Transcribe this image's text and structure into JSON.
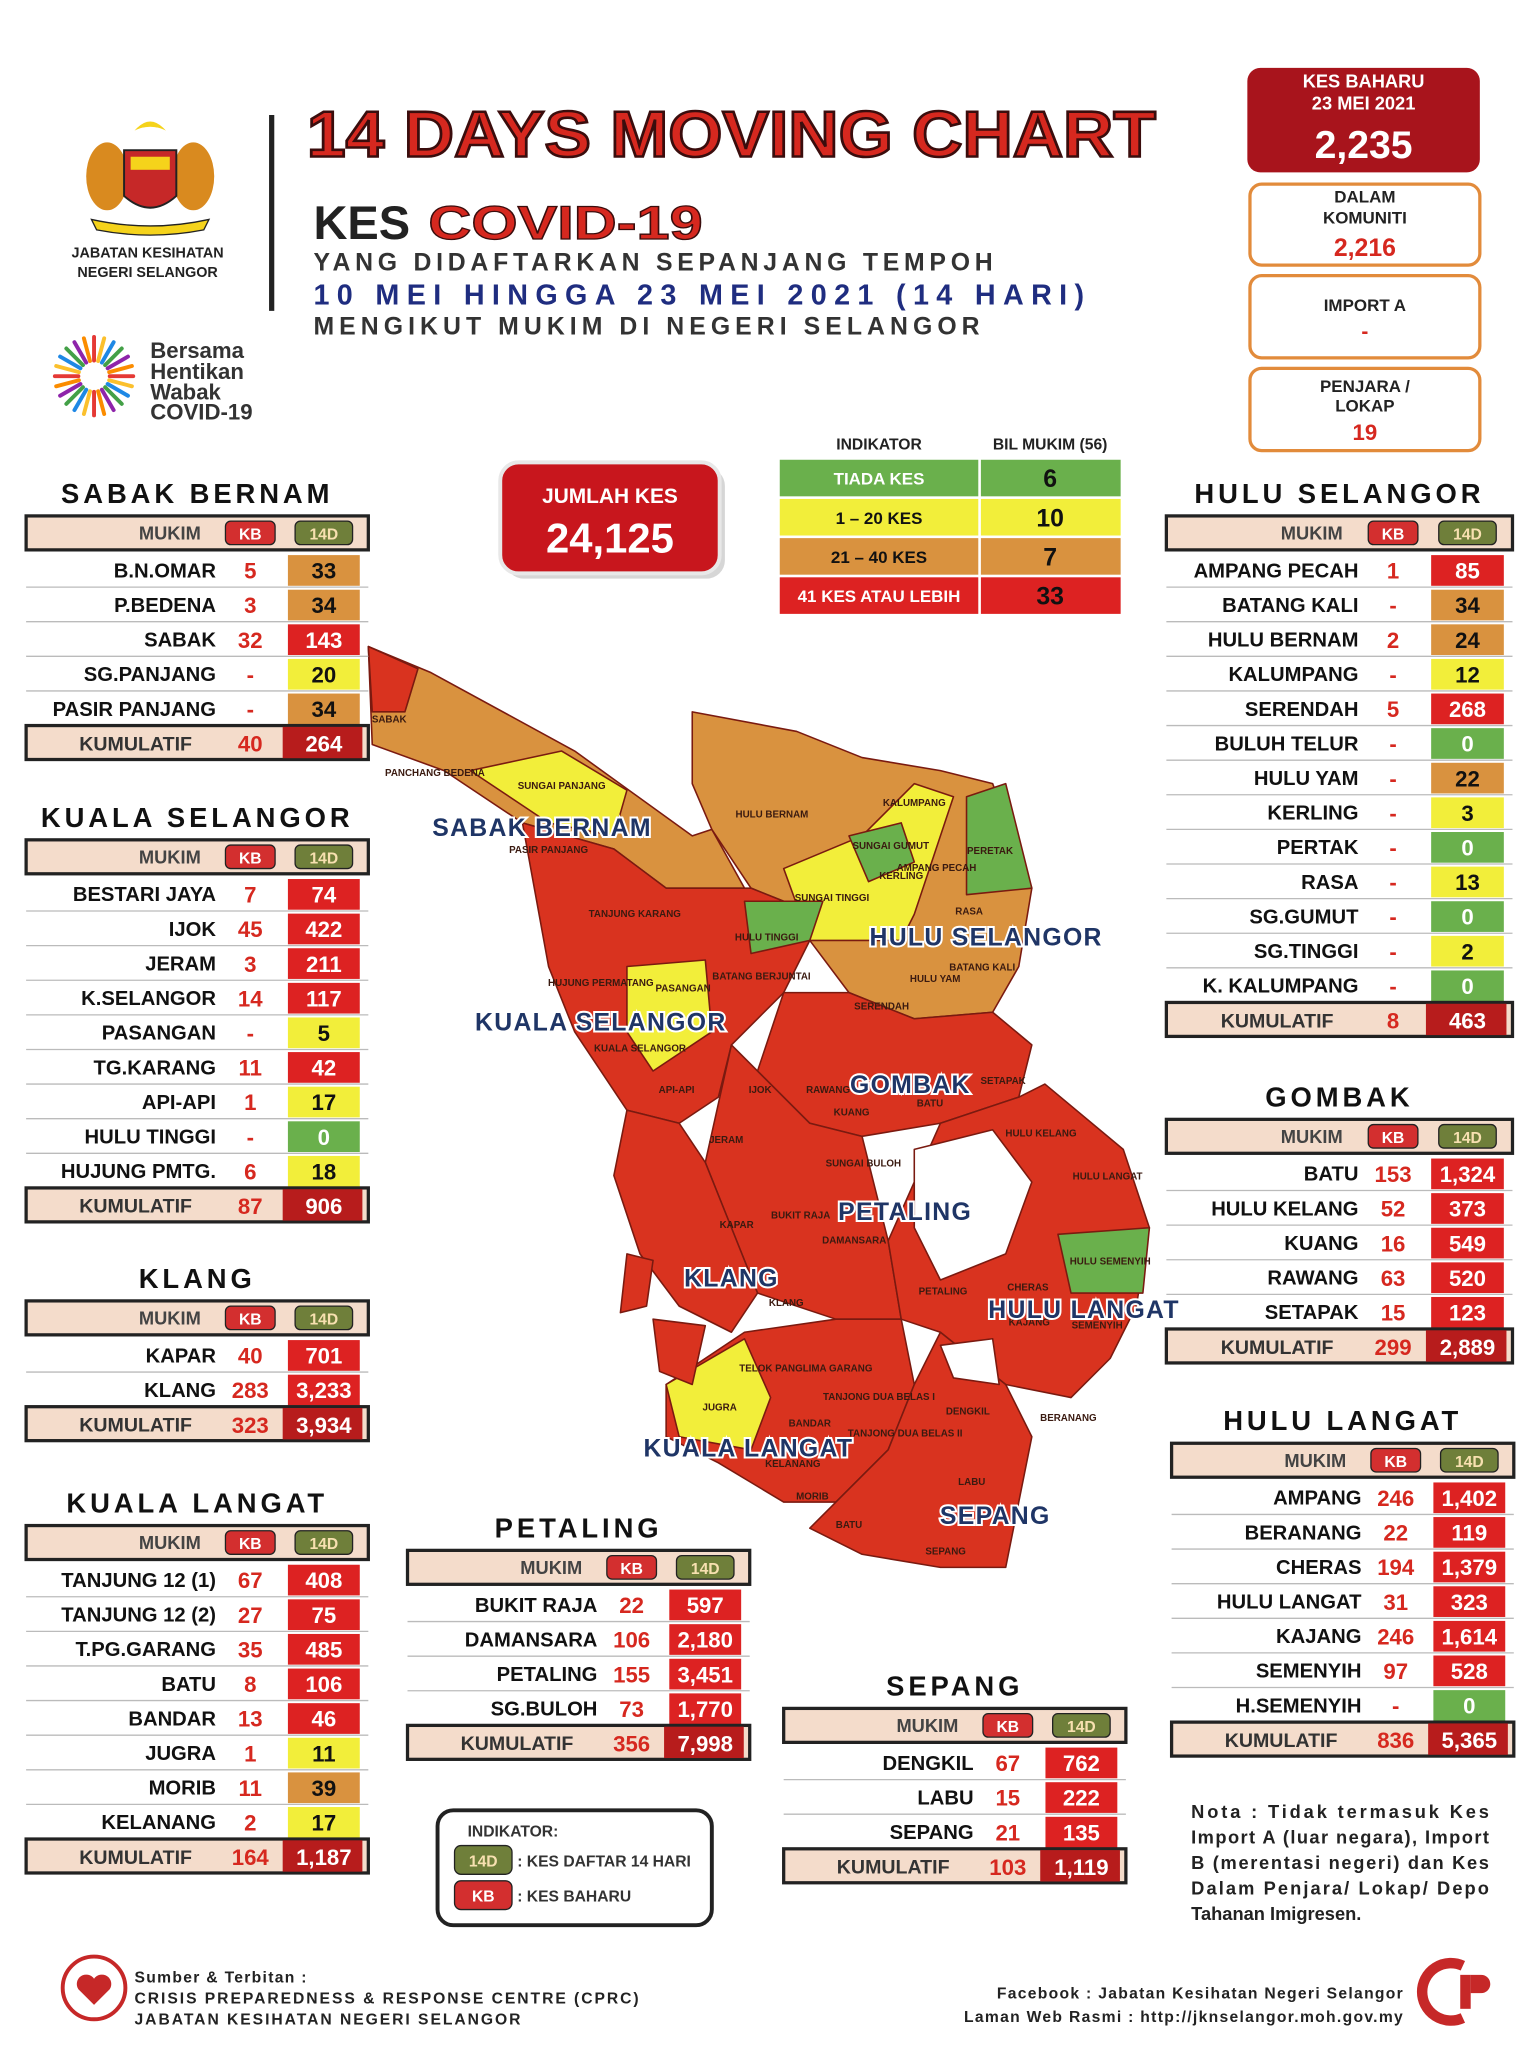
{
  "header": {
    "agency": [
      "JABATAN KESIHATAN",
      "NEGERI SELANGOR"
    ],
    "campaign": [
      "Bersama",
      "Hentikan",
      "Wabak",
      "COVID-19"
    ],
    "title": "14 DAYS MOVING CHART",
    "kes": "KES",
    "covid": "COVID-19",
    "line1": "YANG DIDAFTARKAN SEPANJANG TEMPOH",
    "line2": "10 MEI HINGGA 23 MEI 2021 (14 HARI)",
    "line3": "MENGIKUT MUKIM DI NEGERI SELANGOR"
  },
  "summary": {
    "new_label": "KES BAHARU",
    "date": "23 MEI 2021",
    "new_total": "2,235",
    "community_label": [
      "DALAM",
      "KOMUNITI"
    ],
    "community": "2,216",
    "import_label": "IMPORT A",
    "import": "-",
    "prison_label": [
      "PENJARA /",
      "LOKAP"
    ],
    "prison": "19"
  },
  "total": {
    "label": "JUMLAH KES",
    "value": "24,125"
  },
  "indicator": {
    "header": [
      "INDIKATOR",
      "BIL MUKIM (56)"
    ],
    "rows": [
      {
        "label": "TIADA KES",
        "count": 6,
        "color": "#6ab04c"
      },
      {
        "label": "1 – 20 KES",
        "count": 10,
        "color": "#f2ee3a"
      },
      {
        "label": "21 – 40 KES",
        "count": 7,
        "color": "#d9923f"
      },
      {
        "label": "41 KES ATAU LEBIH",
        "count": 33,
        "color": "#dd2222"
      }
    ]
  },
  "table_header": {
    "mukim": "MUKIM",
    "kb": "KB",
    "d14": "14D"
  },
  "total_label": "KUMULATIF",
  "tables": [
    {
      "district": "SABAK BERNAM",
      "rows": [
        {
          "mukim": "B.N.OMAR",
          "kb": "5",
          "d14": "33",
          "color": "#d9923f"
        },
        {
          "mukim": "P.BEDENA",
          "kb": "3",
          "d14": "34",
          "color": "#d9923f"
        },
        {
          "mukim": "SABAK",
          "kb": "32",
          "d14": "143",
          "color": "#dd2222"
        },
        {
          "mukim": "SG.PANJANG",
          "kb": "-",
          "d14": "20",
          "color": "#f2ee3a"
        },
        {
          "mukim": "PASIR PANJANG",
          "kb": "-",
          "d14": "34",
          "color": "#d9923f"
        }
      ],
      "total": {
        "kb": "40",
        "d14": "264"
      }
    },
    {
      "district": "KUALA SELANGOR",
      "rows": [
        {
          "mukim": "BESTARI JAYA",
          "kb": "7",
          "d14": "74",
          "color": "#dd2222"
        },
        {
          "mukim": "IJOK",
          "kb": "45",
          "d14": "422",
          "color": "#dd2222"
        },
        {
          "mukim": "JERAM",
          "kb": "3",
          "d14": "211",
          "color": "#dd2222"
        },
        {
          "mukim": "K.SELANGOR",
          "kb": "14",
          "d14": "117",
          "color": "#dd2222"
        },
        {
          "mukim": "PASANGAN",
          "kb": "-",
          "d14": "5",
          "color": "#f2ee3a"
        },
        {
          "mukim": "TG.KARANG",
          "kb": "11",
          "d14": "42",
          "color": "#dd2222"
        },
        {
          "mukim": "API-API",
          "kb": "1",
          "d14": "17",
          "color": "#f2ee3a"
        },
        {
          "mukim": "HULU TINGGI",
          "kb": "-",
          "d14": "0",
          "color": "#6ab04c"
        },
        {
          "mukim": "HUJUNG PMTG.",
          "kb": "6",
          "d14": "18",
          "color": "#f2ee3a"
        }
      ],
      "total": {
        "kb": "87",
        "d14": "906"
      }
    },
    {
      "district": "KLANG",
      "rows": [
        {
          "mukim": "KAPAR",
          "kb": "40",
          "d14": "701",
          "color": "#dd2222"
        },
        {
          "mukim": "KLANG",
          "kb": "283",
          "d14": "3,233",
          "color": "#dd2222"
        }
      ],
      "total": {
        "kb": "323",
        "d14": "3,934"
      }
    },
    {
      "district": "KUALA LANGAT",
      "rows": [
        {
          "mukim": "TANJUNG 12 (1)",
          "kb": "67",
          "d14": "408",
          "color": "#dd2222"
        },
        {
          "mukim": "TANJUNG 12 (2)",
          "kb": "27",
          "d14": "75",
          "color": "#dd2222"
        },
        {
          "mukim": "T.PG.GARANG",
          "kb": "35",
          "d14": "485",
          "color": "#dd2222"
        },
        {
          "mukim": "BATU",
          "kb": "8",
          "d14": "106",
          "color": "#dd2222"
        },
        {
          "mukim": "BANDAR",
          "kb": "13",
          "d14": "46",
          "color": "#dd2222"
        },
        {
          "mukim": "JUGRA",
          "kb": "1",
          "d14": "11",
          "color": "#f2ee3a"
        },
        {
          "mukim": "MORIB",
          "kb": "11",
          "d14": "39",
          "color": "#d9923f"
        },
        {
          "mukim": "KELANANG",
          "kb": "2",
          "d14": "17",
          "color": "#f2ee3a"
        }
      ],
      "total": {
        "kb": "164",
        "d14": "1,187"
      }
    },
    {
      "district": "HULU SELANGOR",
      "rows": [
        {
          "mukim": "AMPANG PECAH",
          "kb": "1",
          "d14": "85",
          "color": "#dd2222"
        },
        {
          "mukim": "BATANG KALI",
          "kb": "-",
          "d14": "34",
          "color": "#d9923f"
        },
        {
          "mukim": "HULU BERNAM",
          "kb": "2",
          "d14": "24",
          "color": "#d9923f"
        },
        {
          "mukim": "KALUMPANG",
          "kb": "-",
          "d14": "12",
          "color": "#f2ee3a"
        },
        {
          "mukim": "SERENDAH",
          "kb": "5",
          "d14": "268",
          "color": "#dd2222"
        },
        {
          "mukim": "BULUH TELUR",
          "kb": "-",
          "d14": "0",
          "color": "#6ab04c"
        },
        {
          "mukim": "HULU YAM",
          "kb": "-",
          "d14": "22",
          "color": "#d9923f"
        },
        {
          "mukim": "KERLING",
          "kb": "-",
          "d14": "3",
          "color": "#f2ee3a"
        },
        {
          "mukim": "PERTAK",
          "kb": "-",
          "d14": "0",
          "color": "#6ab04c"
        },
        {
          "mukim": "RASA",
          "kb": "-",
          "d14": "13",
          "color": "#f2ee3a"
        },
        {
          "mukim": "SG.GUMUT",
          "kb": "-",
          "d14": "0",
          "color": "#6ab04c"
        },
        {
          "mukim": "SG.TINGGI",
          "kb": "-",
          "d14": "2",
          "color": "#f2ee3a"
        },
        {
          "mukim": "K. KALUMPANG",
          "kb": "-",
          "d14": "0",
          "color": "#6ab04c"
        }
      ],
      "total": {
        "kb": "8",
        "d14": "463"
      }
    },
    {
      "district": "GOMBAK",
      "rows": [
        {
          "mukim": "BATU",
          "kb": "153",
          "d14": "1,324",
          "color": "#dd2222"
        },
        {
          "mukim": "HULU KELANG",
          "kb": "52",
          "d14": "373",
          "color": "#dd2222"
        },
        {
          "mukim": "KUANG",
          "kb": "16",
          "d14": "549",
          "color": "#dd2222"
        },
        {
          "mukim": "RAWANG",
          "kb": "63",
          "d14": "520",
          "color": "#dd2222"
        },
        {
          "mukim": "SETAPAK",
          "kb": "15",
          "d14": "123",
          "color": "#dd2222"
        }
      ],
      "total": {
        "kb": "299",
        "d14": "2,889"
      }
    },
    {
      "district": "HULU LANGAT",
      "rows": [
        {
          "mukim": "AMPANG",
          "kb": "246",
          "d14": "1,402",
          "color": "#dd2222"
        },
        {
          "mukim": "BERANANG",
          "kb": "22",
          "d14": "119",
          "color": "#dd2222"
        },
        {
          "mukim": "CHERAS",
          "kb": "194",
          "d14": "1,379",
          "color": "#dd2222"
        },
        {
          "mukim": "HULU LANGAT",
          "kb": "31",
          "d14": "323",
          "color": "#dd2222"
        },
        {
          "mukim": "KAJANG",
          "kb": "246",
          "d14": "1,614",
          "color": "#dd2222"
        },
        {
          "mukim": "SEMENYIH",
          "kb": "97",
          "d14": "528",
          "color": "#dd2222"
        },
        {
          "mukim": "H.SEMENYIH",
          "kb": "-",
          "d14": "0",
          "color": "#6ab04c"
        }
      ],
      "total": {
        "kb": "836",
        "d14": "5,365"
      }
    },
    {
      "district": "PETALING",
      "rows": [
        {
          "mukim": "BUKIT RAJA",
          "kb": "22",
          "d14": "597",
          "color": "#dd2222"
        },
        {
          "mukim": "DAMANSARA",
          "kb": "106",
          "d14": "2,180",
          "color": "#dd2222"
        },
        {
          "mukim": "PETALING",
          "kb": "155",
          "d14": "3,451",
          "color": "#dd2222"
        },
        {
          "mukim": "SG.BULOH",
          "kb": "73",
          "d14": "1,770",
          "color": "#dd2222"
        }
      ],
      "total": {
        "kb": "356",
        "d14": "7,998"
      }
    },
    {
      "district": "SEPANG",
      "rows": [
        {
          "mukim": "DENGKIL",
          "kb": "67",
          "d14": "762",
          "color": "#dd2222"
        },
        {
          "mukim": "LABU",
          "kb": "15",
          "d14": "222",
          "color": "#dd2222"
        },
        {
          "mukim": "SEPANG",
          "kb": "21",
          "d14": "135",
          "color": "#dd2222"
        }
      ],
      "total": {
        "kb": "103",
        "d14": "1,119"
      }
    }
  ],
  "map": {
    "districts": [
      "SABAK BERNAM",
      "HULU SELANGOR",
      "KUALA SELANGOR",
      "GOMBAK",
      "PETALING",
      "KLANG",
      "HULU LANGAT",
      "KUALA LANGAT",
      "SEPANG"
    ],
    "mukims": [
      "SABAK",
      "PANCHANG BEDENA",
      "SUNGAI PANJANG",
      "PASIR PANJANG",
      "HULU BERNAM",
      "KALUMPANG",
      "SUNGAI GUMUT",
      "KERLING",
      "AMPANG PECAH",
      "PERETAK",
      "RASA",
      "SUNGAI TINGGI",
      "HULU TINGGI",
      "TANJUNG KARANG",
      "HUJUNG PERMATANG",
      "PASANGAN",
      "BATANG BERJUNTAI",
      "HULU YAM",
      "BATANG KALI",
      "SERENDAH",
      "KUALA SELANGOR",
      "API-API",
      "IJOK",
      "RAWANG",
      "SETAPAK",
      "KUANG",
      "BATU",
      "HULU KELANG",
      "SUNGAI BULOH",
      "HULU LANGAT",
      "JERAM",
      "KAPAR",
      "BUKIT RAJA",
      "DAMANSARA",
      "HULU SEMENYIH",
      "KLANG",
      "PETALING",
      "CHERAS",
      "KAJANG",
      "SEMENYIH",
      "TELOK PANGLIMA GARANG",
      "TANJONG DUA BELAS I",
      "TANJONG DUA BELAS II",
      "JUGRA",
      "BANDAR",
      "BERANANG",
      "DENGKIL",
      "KELANANG",
      "MORIB",
      "LABU",
      "BATU",
      "SEPANG"
    ]
  },
  "legend": {
    "title": "INDIKATOR:",
    "items": [
      ": KES DAFTAR 14 HARI",
      ": KES BAHARU"
    ]
  },
  "note": [
    "Nota : Tidak termasuk Kes",
    "Import A (luar negara), Import",
    "B (merentasi negeri) dan Kes",
    "Dalam Penjara/ Lokap/ Depo",
    "Tahanan Imigresen."
  ],
  "footer": {
    "source_label": "Sumber & Terbitan :",
    "source": [
      "CRISIS PREPAREDNESS & RESPONSE CENTRE (CPRC)",
      "JABATAN KESIHATAN NEGERI SELANGOR"
    ],
    "facebook": "Facebook : Jabatan Kesihatan Negeri Selangor",
    "web": "Laman Web Rasmi : http://jknselangor.moh.gov.my"
  }
}
